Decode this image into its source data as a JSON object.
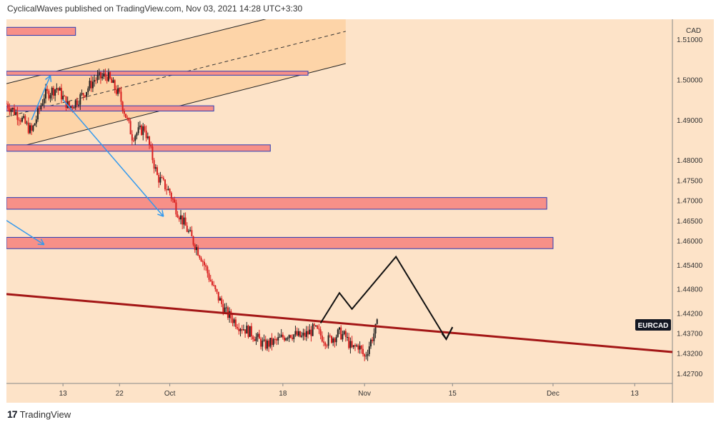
{
  "header": {
    "published_text": "CyclicalWaves published on TradingView.com, Nov 03, 2021 14:28 UTC+3:30"
  },
  "footer": {
    "logo_glyph": "17",
    "brand": "TradingView"
  },
  "colors": {
    "background": "#fde3c8",
    "zone_fill": "#f79088",
    "zone_border": "#2b3bb5",
    "trend_line": "#a31616",
    "candle_up": "#222222",
    "candle_down": "#d92020",
    "arrow": "#3399ee",
    "channel_fill": "#fcd0a0",
    "badge_bg": "#131722"
  },
  "chart_data": {
    "type": "candlestick",
    "symbol_label": "EURCAD",
    "currency_label": "CAD",
    "price_axis": {
      "ticks": [
        1.51,
        1.5,
        1.49,
        1.48,
        1.475,
        1.47,
        1.465,
        1.46,
        1.454,
        1.448,
        1.442,
        1.437,
        1.432,
        1.427
      ],
      "tick_labels": [
        "1.51000",
        "1.50000",
        "1.49000",
        "1.48000",
        "1.47500",
        "1.47000",
        "1.46500",
        "1.46000",
        "1.45400",
        "1.44800",
        "1.44200",
        "1.43700",
        "1.43200",
        "1.42700"
      ]
    },
    "time_axis": {
      "ticks": [
        {
          "day": 13,
          "label": "13"
        },
        {
          "day": 22,
          "label": "22"
        },
        {
          "day": 30,
          "label": "Oct"
        },
        {
          "day": 48,
          "label": "18"
        },
        {
          "day": 61,
          "label": "Nov"
        },
        {
          "day": 75,
          "label": "15"
        },
        {
          "day": 91,
          "label": "Dec"
        },
        {
          "day": 104,
          "label": "13"
        }
      ],
      "day_range": [
        4,
        110
      ]
    },
    "price_range": [
      1.4245,
      1.515
    ],
    "ohlc_path": [
      [
        4,
        1.494
      ],
      [
        6,
        1.491
      ],
      [
        8,
        1.487
      ],
      [
        10,
        1.496
      ],
      [
        12,
        1.498
      ],
      [
        14,
        1.493
      ],
      [
        16,
        1.496
      ],
      [
        18,
        1.5
      ],
      [
        20,
        1.501
      ],
      [
        22,
        1.496
      ],
      [
        24,
        1.486
      ],
      [
        26,
        1.488
      ],
      [
        28,
        1.476
      ],
      [
        30,
        1.472
      ],
      [
        31,
        1.468
      ],
      [
        33,
        1.462
      ],
      [
        35,
        1.456
      ],
      [
        37,
        1.448
      ],
      [
        39,
        1.442
      ],
      [
        41,
        1.439
      ],
      [
        43,
        1.437
      ],
      [
        45,
        1.434
      ],
      [
        47,
        1.435
      ],
      [
        49,
        1.437
      ],
      [
        51,
        1.436
      ],
      [
        53,
        1.438
      ],
      [
        55,
        1.435
      ],
      [
        57,
        1.437
      ],
      [
        58,
        1.436
      ],
      [
        59,
        1.433
      ],
      [
        60,
        1.434
      ],
      [
        61,
        1.431
      ],
      [
        62,
        1.435
      ],
      [
        63,
        1.439
      ]
    ],
    "zones": [
      {
        "from_day": 4,
        "to_day": 15,
        "price_top": 1.513,
        "price_bottom": 1.511
      },
      {
        "from_day": 4,
        "to_day": 52,
        "price_top": 1.5021,
        "price_bottom": 1.5011
      },
      {
        "from_day": 4,
        "to_day": 37,
        "price_top": 1.4935,
        "price_bottom": 1.4922
      },
      {
        "from_day": 4,
        "to_day": 46,
        "price_top": 1.4838,
        "price_bottom": 1.4822
      },
      {
        "from_day": 4,
        "to_day": 90,
        "price_top": 1.4707,
        "price_bottom": 1.4678
      },
      {
        "from_day": 4,
        "to_day": 91,
        "price_top": 1.4608,
        "price_bottom": 1.458
      }
    ],
    "trend_line": {
      "from": [
        4,
        1.4467
      ],
      "to": [
        110,
        1.4323
      ]
    },
    "channel": {
      "upper": {
        "from": [
          4,
          1.499
        ],
        "to": [
          58,
          1.52
        ]
      },
      "lower": {
        "from": [
          4,
          1.4825
        ],
        "to": [
          58,
          1.504
        ]
      }
    },
    "arrows": [
      {
        "from": [
          8,
          1.49
        ],
        "to": [
          11,
          1.501
        ]
      },
      {
        "from": [
          13,
          1.495
        ],
        "to": [
          29,
          1.466
        ]
      },
      {
        "from": [
          4,
          1.465
        ],
        "to": [
          10,
          1.459
        ]
      }
    ],
    "projection_path": [
      [
        54,
        1.4395
      ],
      [
        57,
        1.447
      ],
      [
        59,
        1.443
      ],
      [
        66,
        1.456
      ],
      [
        74,
        1.4355
      ],
      [
        75,
        1.4385
      ]
    ]
  }
}
